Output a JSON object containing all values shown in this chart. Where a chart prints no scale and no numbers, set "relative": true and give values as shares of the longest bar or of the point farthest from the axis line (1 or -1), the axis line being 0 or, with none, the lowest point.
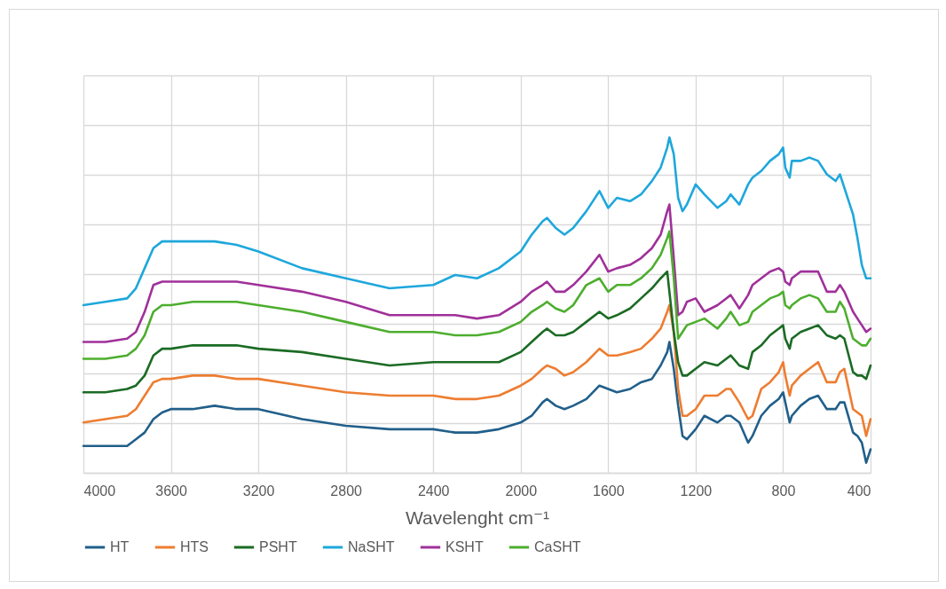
{
  "chart_data": {
    "type": "line",
    "xlabel": "Wavelenght cm⁻¹",
    "relative": true,
    "grid": true,
    "legend": "bottom",
    "xlim": [
      4000,
      400
    ],
    "xticks": [
      4000,
      3600,
      3200,
      2800,
      2400,
      2000,
      1600,
      1200,
      800,
      400
    ],
    "x": [
      4000,
      3900,
      3800,
      3760,
      3720,
      3680,
      3640,
      3600,
      3500,
      3400,
      3300,
      3200,
      3000,
      2800,
      2600,
      2400,
      2300,
      2200,
      2100,
      2000,
      1950,
      1900,
      1880,
      1840,
      1800,
      1760,
      1700,
      1640,
      1600,
      1560,
      1500,
      1450,
      1400,
      1360,
      1330,
      1320,
      1300,
      1280,
      1260,
      1240,
      1200,
      1160,
      1100,
      1060,
      1040,
      1000,
      960,
      940,
      900,
      860,
      820,
      800,
      790,
      770,
      760,
      720,
      680,
      640,
      600,
      560,
      540,
      520,
      480,
      460,
      440,
      420,
      400
    ],
    "series": [
      {
        "name": "HT",
        "color": "#215f8a",
        "values": [
          0.08,
          0.08,
          0.08,
          0.1,
          0.12,
          0.16,
          0.18,
          0.19,
          0.19,
          0.2,
          0.19,
          0.19,
          0.16,
          0.14,
          0.13,
          0.13,
          0.12,
          0.12,
          0.13,
          0.15,
          0.17,
          0.21,
          0.22,
          0.2,
          0.19,
          0.2,
          0.22,
          0.26,
          0.25,
          0.24,
          0.25,
          0.27,
          0.28,
          0.32,
          0.36,
          0.39,
          0.31,
          0.2,
          0.11,
          0.1,
          0.13,
          0.17,
          0.15,
          0.17,
          0.17,
          0.15,
          0.09,
          0.11,
          0.17,
          0.2,
          0.22,
          0.24,
          0.21,
          0.15,
          0.17,
          0.2,
          0.22,
          0.23,
          0.19,
          0.19,
          0.21,
          0.21,
          0.12,
          0.11,
          0.09,
          0.03,
          0.07
        ]
      },
      {
        "name": "HTS",
        "color": "#ed7d31",
        "values": [
          0.15,
          0.16,
          0.17,
          0.19,
          0.23,
          0.27,
          0.28,
          0.28,
          0.29,
          0.29,
          0.28,
          0.28,
          0.26,
          0.24,
          0.23,
          0.23,
          0.22,
          0.22,
          0.23,
          0.26,
          0.28,
          0.31,
          0.32,
          0.31,
          0.29,
          0.3,
          0.33,
          0.37,
          0.35,
          0.35,
          0.36,
          0.37,
          0.4,
          0.43,
          0.48,
          0.5,
          0.42,
          0.25,
          0.17,
          0.17,
          0.19,
          0.23,
          0.23,
          0.25,
          0.25,
          0.21,
          0.16,
          0.17,
          0.25,
          0.27,
          0.3,
          0.33,
          0.29,
          0.23,
          0.26,
          0.29,
          0.31,
          0.33,
          0.27,
          0.27,
          0.3,
          0.31,
          0.19,
          0.18,
          0.17,
          0.11,
          0.16
        ]
      },
      {
        "name": "PSHT",
        "color": "#1b6b24",
        "values": [
          0.24,
          0.24,
          0.25,
          0.26,
          0.29,
          0.35,
          0.37,
          0.37,
          0.38,
          0.38,
          0.38,
          0.37,
          0.36,
          0.34,
          0.32,
          0.33,
          0.33,
          0.33,
          0.33,
          0.36,
          0.39,
          0.42,
          0.43,
          0.41,
          0.41,
          0.42,
          0.45,
          0.48,
          0.46,
          0.47,
          0.49,
          0.52,
          0.55,
          0.58,
          0.6,
          0.54,
          0.42,
          0.33,
          0.29,
          0.29,
          0.31,
          0.33,
          0.32,
          0.34,
          0.35,
          0.32,
          0.31,
          0.36,
          0.38,
          0.41,
          0.43,
          0.44,
          0.4,
          0.37,
          0.4,
          0.42,
          0.43,
          0.44,
          0.41,
          0.4,
          0.41,
          0.4,
          0.3,
          0.29,
          0.29,
          0.28,
          0.32
        ]
      },
      {
        "name": "NaSHT",
        "color": "#1ea7dc",
        "values": [
          0.5,
          0.51,
          0.52,
          0.55,
          0.61,
          0.67,
          0.69,
          0.69,
          0.69,
          0.69,
          0.68,
          0.66,
          0.61,
          0.58,
          0.55,
          0.56,
          0.59,
          0.58,
          0.61,
          0.66,
          0.71,
          0.75,
          0.76,
          0.73,
          0.71,
          0.73,
          0.78,
          0.84,
          0.79,
          0.82,
          0.81,
          0.83,
          0.87,
          0.91,
          0.97,
          1,
          0.95,
          0.82,
          0.78,
          0.8,
          0.86,
          0.83,
          0.79,
          0.81,
          0.83,
          0.8,
          0.86,
          0.88,
          0.9,
          0.93,
          0.95,
          0.97,
          0.91,
          0.88,
          0.93,
          0.93,
          0.94,
          0.93,
          0.89,
          0.87,
          0.89,
          0.85,
          0.77,
          0.7,
          0.62,
          0.58,
          0.58
        ]
      },
      {
        "name": "KSHT",
        "color": "#a0309a",
        "values": [
          0.39,
          0.39,
          0.4,
          0.42,
          0.48,
          0.56,
          0.57,
          0.57,
          0.57,
          0.57,
          0.57,
          0.56,
          0.54,
          0.51,
          0.47,
          0.47,
          0.47,
          0.46,
          0.47,
          0.51,
          0.54,
          0.56,
          0.57,
          0.54,
          0.54,
          0.56,
          0.6,
          0.65,
          0.6,
          0.61,
          0.62,
          0.64,
          0.67,
          0.71,
          0.78,
          0.8,
          0.64,
          0.47,
          0.48,
          0.51,
          0.52,
          0.48,
          0.5,
          0.52,
          0.53,
          0.49,
          0.53,
          0.56,
          0.58,
          0.6,
          0.61,
          0.6,
          0.57,
          0.56,
          0.58,
          0.6,
          0.6,
          0.6,
          0.54,
          0.54,
          0.56,
          0.54,
          0.48,
          0.46,
          0.44,
          0.42,
          0.43
        ]
      },
      {
        "name": "CaSHT",
        "color": "#4dae2e",
        "values": [
          0.34,
          0.34,
          0.35,
          0.37,
          0.41,
          0.48,
          0.5,
          0.5,
          0.51,
          0.51,
          0.51,
          0.5,
          0.48,
          0.45,
          0.42,
          0.42,
          0.41,
          0.41,
          0.42,
          0.45,
          0.48,
          0.5,
          0.51,
          0.49,
          0.48,
          0.5,
          0.56,
          0.58,
          0.54,
          0.56,
          0.56,
          0.58,
          0.61,
          0.65,
          0.7,
          0.72,
          0.58,
          0.4,
          0.42,
          0.44,
          0.45,
          0.46,
          0.43,
          0.46,
          0.48,
          0.44,
          0.45,
          0.48,
          0.5,
          0.52,
          0.53,
          0.54,
          0.5,
          0.49,
          0.5,
          0.52,
          0.53,
          0.52,
          0.48,
          0.48,
          0.51,
          0.49,
          0.4,
          0.39,
          0.38,
          0.38,
          0.4
        ]
      }
    ]
  }
}
